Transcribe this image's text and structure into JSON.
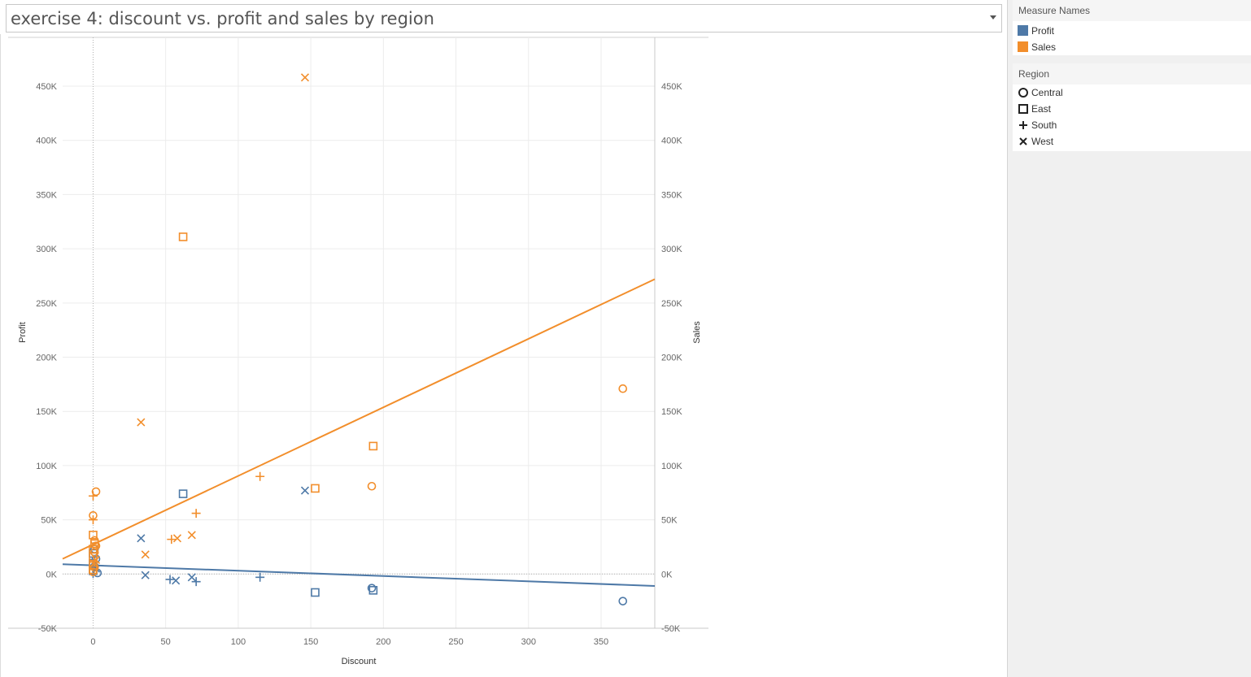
{
  "worksheet": {
    "title": "exercise 4: discount vs. profit and sales by region"
  },
  "legends": {
    "measure_names": {
      "title": "Measure Names",
      "items": [
        {
          "label": "Profit",
          "color": "#4e79a7"
        },
        {
          "label": "Sales",
          "color": "#f28e2b"
        }
      ]
    },
    "region": {
      "title": "Region",
      "items": [
        {
          "label": "Central",
          "shape": "circle-icon"
        },
        {
          "label": "East",
          "shape": "square-icon"
        },
        {
          "label": "South",
          "shape": "plus-icon"
        },
        {
          "label": "West",
          "shape": "cross-icon"
        }
      ]
    }
  },
  "chart_data": {
    "type": "scatter",
    "xlabel": "Discount",
    "ylabel": "Profit",
    "y2label": "Sales",
    "xlim": [
      -21,
      387
    ],
    "ylim": [
      -50000,
      495000
    ],
    "xticks": [
      0,
      50,
      100,
      150,
      200,
      250,
      300,
      350
    ],
    "yticks": [
      -50000,
      0,
      50000,
      100000,
      150000,
      200000,
      250000,
      300000,
      350000,
      400000,
      450000
    ],
    "ytick_labels": [
      "-50K",
      "0K",
      "50K",
      "100K",
      "150K",
      "200K",
      "250K",
      "300K",
      "350K",
      "400K",
      "450K"
    ],
    "grid": true,
    "legend": "right",
    "colors": {
      "Profit": "#4e79a7",
      "Sales": "#f28e2b"
    },
    "series": [
      {
        "name": "Sales",
        "points": [
          {
            "region": "West",
            "x": 146,
            "y": 458000
          },
          {
            "region": "East",
            "x": 62,
            "y": 311000
          },
          {
            "region": "Central",
            "x": 365,
            "y": 171000
          },
          {
            "region": "West",
            "x": 33,
            "y": 140000
          },
          {
            "region": "East",
            "x": 193,
            "y": 118000
          },
          {
            "region": "South",
            "x": 115,
            "y": 90000
          },
          {
            "region": "Central",
            "x": 192,
            "y": 81000
          },
          {
            "region": "East",
            "x": 153,
            "y": 79000
          },
          {
            "region": "Central",
            "x": 2,
            "y": 76000
          },
          {
            "region": "South",
            "x": 0,
            "y": 72000
          },
          {
            "region": "South",
            "x": 71,
            "y": 56000
          },
          {
            "region": "Central",
            "x": 0,
            "y": 54000
          },
          {
            "region": "South",
            "x": 0,
            "y": 50000
          },
          {
            "region": "West",
            "x": 68,
            "y": 36000
          },
          {
            "region": "East",
            "x": 0,
            "y": 36000
          },
          {
            "region": "West",
            "x": 58,
            "y": 33000
          },
          {
            "region": "South",
            "x": 54,
            "y": 32000
          },
          {
            "region": "Central",
            "x": 1,
            "y": 31000
          },
          {
            "region": "East",
            "x": 1,
            "y": 28000
          },
          {
            "region": "Central",
            "x": 2,
            "y": 26000
          },
          {
            "region": "East",
            "x": 0,
            "y": 23000
          },
          {
            "region": "Central",
            "x": 1,
            "y": 20000
          },
          {
            "region": "West",
            "x": 36,
            "y": 18000
          },
          {
            "region": "East",
            "x": 0,
            "y": 16000
          },
          {
            "region": "West",
            "x": 2,
            "y": 13000
          },
          {
            "region": "South",
            "x": 1,
            "y": 11000
          },
          {
            "region": "East",
            "x": 0,
            "y": 8000
          },
          {
            "region": "Central",
            "x": 1,
            "y": 6000
          },
          {
            "region": "East",
            "x": 0,
            "y": 4000
          },
          {
            "region": "Central",
            "x": 0,
            "y": 2000
          }
        ],
        "trend": {
          "x": [
            -21,
            387
          ],
          "y": [
            14000,
            272000
          ]
        }
      },
      {
        "name": "Profit",
        "points": [
          {
            "region": "West",
            "x": 146,
            "y": 77000
          },
          {
            "region": "East",
            "x": 62,
            "y": 74000
          },
          {
            "region": "West",
            "x": 33,
            "y": 33000
          },
          {
            "region": "Central",
            "x": 1,
            "y": 23000
          },
          {
            "region": "East",
            "x": 0,
            "y": 19000
          },
          {
            "region": "Central",
            "x": 2,
            "y": 14000
          },
          {
            "region": "East",
            "x": 0,
            "y": 10000
          },
          {
            "region": "Central",
            "x": 1,
            "y": 7000
          },
          {
            "region": "West",
            "x": 2,
            "y": 5000
          },
          {
            "region": "East",
            "x": 0,
            "y": 3000
          },
          {
            "region": "Central",
            "x": 3,
            "y": 1000
          },
          {
            "region": "South",
            "x": 0,
            "y": 500
          },
          {
            "region": "West",
            "x": 36,
            "y": -1000
          },
          {
            "region": "South",
            "x": 115,
            "y": -3000
          },
          {
            "region": "West",
            "x": 68,
            "y": -3000
          },
          {
            "region": "South",
            "x": 53,
            "y": -5000
          },
          {
            "region": "West",
            "x": 57,
            "y": -6000
          },
          {
            "region": "South",
            "x": 71,
            "y": -7000
          },
          {
            "region": "Central",
            "x": 192,
            "y": -13000
          },
          {
            "region": "East",
            "x": 193,
            "y": -15000
          },
          {
            "region": "East",
            "x": 153,
            "y": -17000
          },
          {
            "region": "Central",
            "x": 365,
            "y": -25000
          }
        ],
        "trend": {
          "x": [
            -21,
            387
          ],
          "y": [
            9000,
            -11000
          ]
        }
      }
    ]
  }
}
